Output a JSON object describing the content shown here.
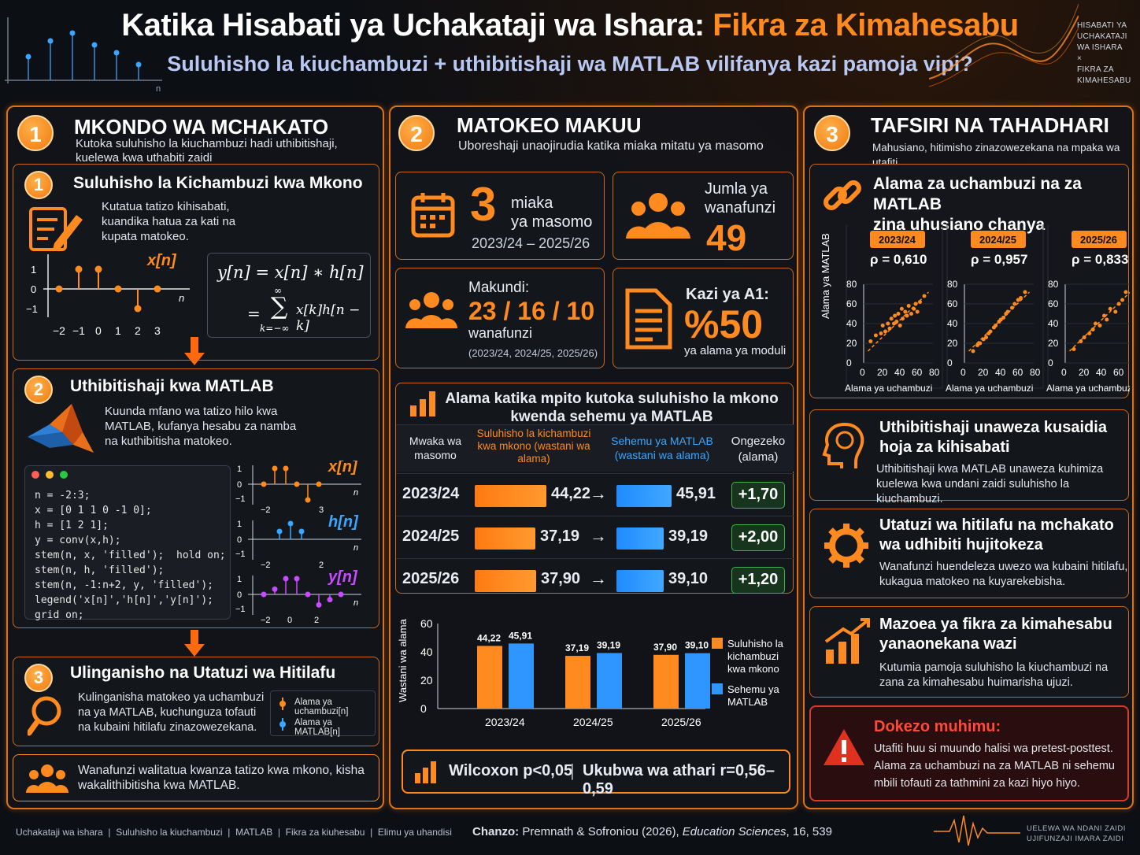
{
  "header": {
    "title_main": "Katika Hisabati ya Uchakataji wa Ishara: ",
    "title_highlight": "Fikra za Kimahesabu",
    "subtitle": "Suluhisho la kiuchambuzi + uthibitishaji wa MATLAB vilifanya kazi pamoja vipi?",
    "corner_label": [
      "HISABATI YA",
      "UCHAKATAJI",
      "WA ISHARA",
      "×",
      "FIKRA ZA",
      "KIMAHESABU"
    ],
    "corner_axis": "n"
  },
  "col1": {
    "num": "1",
    "title": "MKONDO WA MCHAKATO",
    "desc": "Kutoka suluhisho la kiuchambuzi hadi uthibitishaji, kuelewa kwa uthabiti zaidi",
    "step1": {
      "num": "1",
      "title": "Suluhisho la Kichambuzi kwa Mkono",
      "text": "Kutatua tatizo kihisabati, kuandika hatua za kati na kupata matokeo.",
      "xlabel": "x[n]",
      "n": "n",
      "yticks": [
        "1",
        "0",
        "−1"
      ],
      "xticks": [
        "−2",
        "−1",
        "0",
        "1",
        "2",
        "3"
      ],
      "stem_values": [
        0,
        1,
        1,
        0,
        -1,
        0
      ],
      "eq1": "y[n] = x[n] ∗ h[n]",
      "eq2_eq": "=",
      "eq2_sum": "∑",
      "eq2_top": "∞",
      "eq2_bot": "k=−∞",
      "eq2_term": "x[k]h[n − k]"
    },
    "step2": {
      "num": "2",
      "title": "Uthibitishaji kwa MATLAB",
      "text": "Kuunda mfano wa tatizo hilo kwa MATLAB, kufanya hesabu za namba na kuthibitisha matokeo.",
      "code": [
        "n = -2:3;",
        "x = [0 1 1 0 -1 0];",
        "h = [1 2 1];",
        "y = conv(x,h);",
        "stem(n, x, 'filled');  hold on;",
        "stem(n, h, 'filled');",
        "stem(n, -1:n+2, y, 'filled');",
        "legend('x[n]','h[n]','y[n]');",
        "grid on;"
      ],
      "plots": [
        {
          "label": "x[n]",
          "yticks": [
            "1",
            "0",
            "−1"
          ],
          "xticks": [
            "−2",
            "3"
          ],
          "n": "n"
        },
        {
          "label": "h[n]",
          "yticks": [
            "1",
            "0",
            "−1"
          ],
          "xticks": [
            "−2",
            "2"
          ],
          "n": "n"
        },
        {
          "label": "y[n]",
          "yticks": [
            "1",
            "0",
            "−1"
          ],
          "xticks": [
            "−2",
            "0",
            "2"
          ],
          "n": "n"
        }
      ]
    },
    "step3": {
      "num": "3",
      "title": "Ulinganisho na Utatuzi wa Hitilafu",
      "text": "Kulinganisha matokeo ya uchambuzi na ya MATLAB, kuchunguza tofauti na kubaini hitilafu zinazowezekana.",
      "legend": [
        "Alama ya uchambuzi[n]",
        "Alama ya MATLAB[n]"
      ]
    },
    "note": "Wanafunzi walitatua kwanza tatizo kwa mkono, kisha wakalithibitisha kwa MATLAB."
  },
  "col2": {
    "num": "2",
    "title": "MATOKEO MAKUU",
    "desc": "Uboreshaji unaojirudia katika miaka mitatu ya masomo",
    "card1": {
      "big": "3",
      "l1": "miaka",
      "l2": "ya masomo",
      "l3": "2023/24 – 2025/26"
    },
    "card2": {
      "l1": "Jumla ya",
      "l2": "wanafunzi",
      "big": "49"
    },
    "card3": {
      "l1": "Makundi:",
      "big": "23 / 16 / 10",
      "l2": "wanafunzi",
      "l3": "(2023/24, 2024/25, 2025/26)"
    },
    "card4": {
      "l1": "Kazi ya A1:",
      "big": "%50",
      "l2": "ya alama ya moduli"
    },
    "table": {
      "title_l1": "Alama katika mpito kutoka suluhisho la mkono",
      "title_l2": "kwenda sehemu ya MATLAB",
      "headers": {
        "year": "Mwaka wa masomo",
        "hand": "Suluhisho la kichambuzi kwa mkono (wastani wa alama)",
        "matlab": "Sehemu ya MATLAB (wastani wa alama)",
        "gain": "Ongezeko (alama)"
      },
      "rows": [
        {
          "year": "2023/24",
          "hand": "44,22",
          "arrow": "→",
          "matlab": "45,91",
          "gain": "+1,70"
        },
        {
          "year": "2024/25",
          "hand": "37,19",
          "arrow": "→",
          "matlab": "39,19",
          "gain": "+2,00"
        },
        {
          "year": "2025/26",
          "hand": "37,90",
          "arrow": "→",
          "matlab": "39,10",
          "gain": "+1,20"
        }
      ]
    },
    "stats": {
      "left": "Wilcoxon p<0,05",
      "sep": "|",
      "right": "Ukubwa wa athari r=0,56–0,59"
    }
  },
  "col3": {
    "num": "3",
    "title": "TAFSIRI NA TAHADHARI",
    "desc": "Mahusiano, hitimisho zinazowezekana na mpaka wa utafiti",
    "corr_title_l1": "Alama za uchambuzi na za MATLAB",
    "corr_title_l2": "zina uhusiano chanya",
    "scatter": {
      "ylabel": "Alama ya MATLAB",
      "xlabel": "Alama ya uchambuzi",
      "ticks": [
        "0",
        "20",
        "40",
        "60",
        "80"
      ],
      "panels": [
        {
          "year": "2023/24",
          "rho": "ρ = 0,610"
        },
        {
          "year": "2024/25",
          "rho": "ρ = 0,957"
        },
        {
          "year": "2025/26",
          "rho": "ρ = 0,833"
        }
      ]
    },
    "item1": {
      "title_l1": "Uthibitishaji unaweza kusaidia",
      "title_l2": "hoja za kihisabati",
      "text": "Uthibitishaji kwa MATLAB unaweza kuhimiza kuelewa kwa undani zaidi suluhisho la kiuchambuzi."
    },
    "item2": {
      "title_l1": "Utatuzi wa hitilafu na mchakato",
      "title_l2": "wa udhibiti hujitokeza",
      "text": "Wanafunzi huendeleza uwezo wa kubaini hitilafu, kukagua matokeo na kuyarekebisha."
    },
    "item3": {
      "title_l1": "Mazoea ya fikra za kimahesabu",
      "title_l2": "yanaonekana wazi",
      "text": "Kutumia pamoja suluhisho la kiuchambuzi na zana za kimahesabu huimarisha ujuzi."
    },
    "warning": {
      "title": "Dokezo muhimu:",
      "text": "Utafiti huu si muundo halisi wa pretest-posttest. Alama za uchambuzi na za MATLAB ni sehemu mbili tofauti za tathmini za kazi hiyo hiyo."
    }
  },
  "footer": {
    "tags": [
      "Uchakataji wa ishara",
      "Suluhisho la kiuchambuzi",
      "MATLAB",
      "Fikra za kiuhesabu",
      "Elimu ya uhandisi"
    ],
    "sep": "|",
    "source_label": "Chanzo:",
    "source": " Premnath & Sofroniou (2026), ",
    "journal": "Education Sciences",
    "vol": ", 16, 539",
    "right_l1": "UELEWA WA NDANI ZAIDI",
    "right_l2": "UJIFUNZAJI IMARA ZAIDI"
  },
  "colors": {
    "accent": "#ff8a1f",
    "matlab": "#3aa6ff",
    "gain": "#3fb24f",
    "warning": "#d63a28"
  },
  "chart_data": [
    {
      "type": "bar",
      "categories": [
        "2023/24",
        "2024/25",
        "2025/26"
      ],
      "series": [
        {
          "name": "Suluhisho la kichambuzi kwa mkono",
          "values": [
            44.22,
            37.19,
            37.9
          ],
          "labels": [
            "44,22",
            "37,19",
            "37,90"
          ]
        },
        {
          "name": "Sehemu ya MATLAB",
          "values": [
            45.91,
            39.19,
            39.1
          ],
          "labels": [
            "45,91",
            "39,19",
            "39,10"
          ]
        }
      ],
      "ylabel": "Wastani wa alama",
      "yticks": [
        "0",
        "20",
        "40",
        "60"
      ],
      "ylim": [
        0,
        60
      ],
      "legend": [
        "Suluhisho la kichambuzi kwa mkono",
        "Sehemu ya MATLAB"
      ]
    },
    {
      "type": "scatter",
      "title": "2023/24",
      "x": [
        8,
        14,
        20,
        22,
        25,
        28,
        30,
        32,
        35,
        36,
        38,
        40,
        42,
        44,
        45,
        48,
        50,
        52,
        55,
        58,
        60,
        62,
        65,
        70
      ],
      "y": [
        22,
        28,
        30,
        38,
        32,
        40,
        35,
        45,
        40,
        48,
        42,
        50,
        38,
        55,
        45,
        52,
        48,
        58,
        50,
        55,
        60,
        52,
        62,
        68
      ],
      "xlim": [
        0,
        80
      ],
      "ylim": [
        0,
        80
      ]
    },
    {
      "type": "scatter",
      "title": "2024/25",
      "x": [
        10,
        15,
        18,
        22,
        25,
        28,
        30,
        34,
        36,
        40,
        42,
        45,
        48,
        50,
        55,
        58,
        62,
        65,
        70
      ],
      "y": [
        12,
        18,
        20,
        24,
        26,
        30,
        32,
        36,
        38,
        42,
        44,
        46,
        50,
        52,
        56,
        60,
        64,
        66,
        72
      ],
      "xlim": [
        0,
        80
      ],
      "ylim": [
        0,
        80
      ]
    },
    {
      "type": "scatter",
      "title": "2025/26",
      "x": [
        10,
        18,
        22,
        28,
        32,
        35,
        40,
        45,
        48,
        52,
        58,
        62,
        66,
        70
      ],
      "y": [
        14,
        22,
        26,
        30,
        34,
        40,
        38,
        48,
        44,
        55,
        52,
        60,
        64,
        72
      ],
      "xlim": [
        0,
        80
      ],
      "ylim": [
        0,
        80
      ]
    }
  ]
}
